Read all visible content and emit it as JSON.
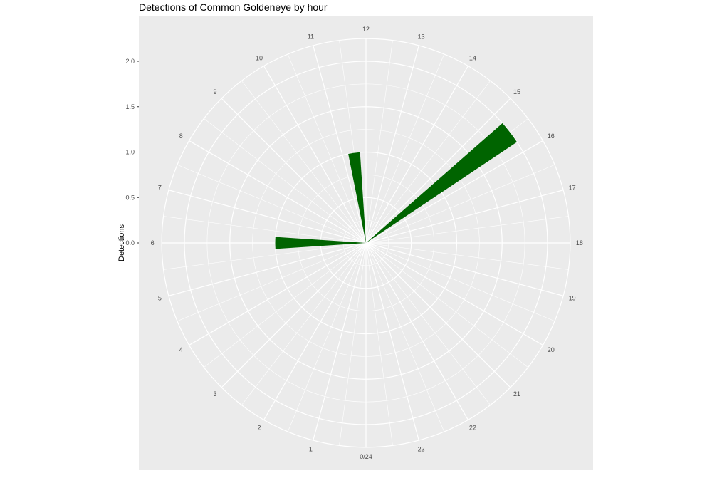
{
  "chart_data": {
    "type": "bar",
    "coordinate": "polar",
    "title": "Detections of Common Goldeneye by hour",
    "xlabel": "",
    "ylabel": "Detections",
    "x_tick_labels": [
      "0/24",
      "1",
      "2",
      "3",
      "4",
      "5",
      "6",
      "7",
      "8",
      "9",
      "10",
      "11",
      "12",
      "13",
      "14",
      "15",
      "16",
      "17",
      "18",
      "19",
      "20",
      "21",
      "22",
      "23"
    ],
    "y_ticks": [
      0.0,
      0.5,
      1.0,
      1.5,
      2.0
    ],
    "y_tick_labels": [
      "0.0",
      "0.5",
      "1.0",
      "1.5",
      "2.0"
    ],
    "ylim": [
      0,
      2.25
    ],
    "bar_width_hours": 0.5,
    "series": [
      {
        "x": [
          6,
          11.5,
          15.5
        ],
        "values": [
          1,
          1,
          2
        ]
      }
    ],
    "colors": {
      "bar": "#006400",
      "panel": "#ebebeb",
      "grid": "#ffffff"
    },
    "grid": true,
    "legend": "none"
  }
}
